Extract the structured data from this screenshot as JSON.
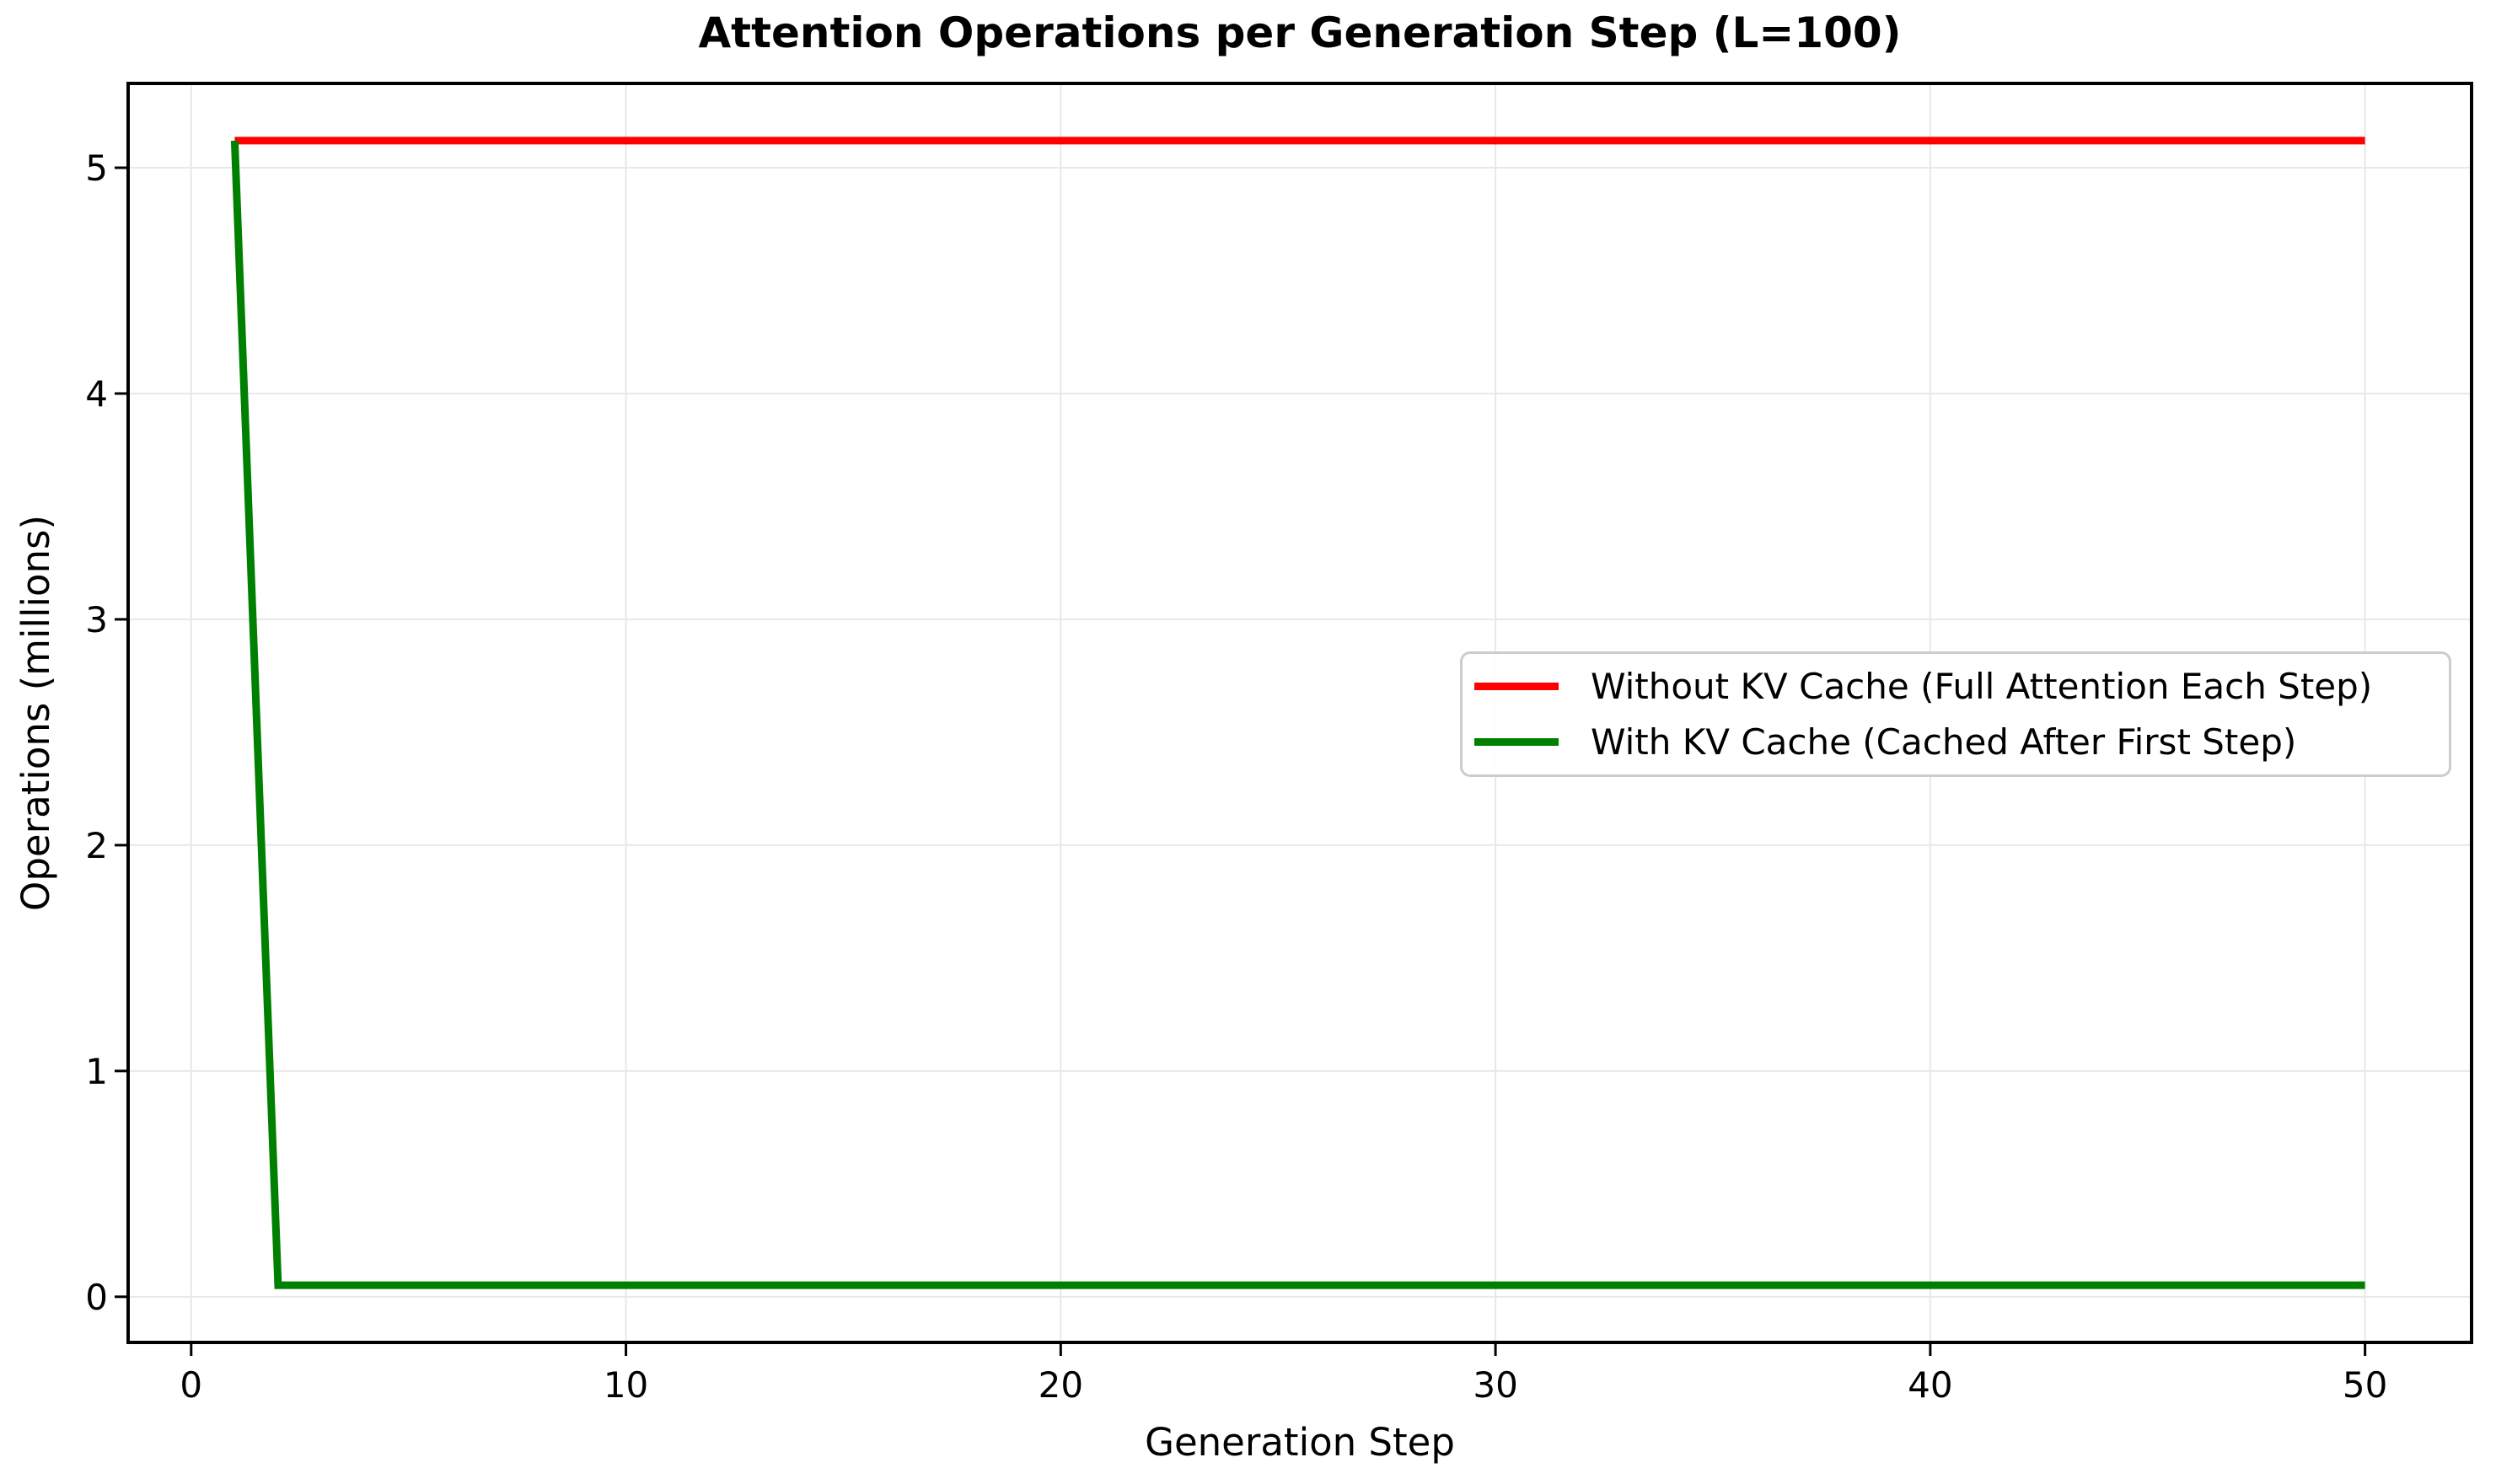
{
  "chart_data": {
    "type": "line",
    "title": "Attention Operations per Generation Step (L=100)",
    "xlabel": "Generation Step",
    "ylabel": "Operations (millions)",
    "xlim": [
      -1.45,
      52.45
    ],
    "ylim": [
      -0.2022,
      5.3734
    ],
    "xticks": [
      0,
      10,
      20,
      30,
      40,
      50
    ],
    "yticks": [
      0,
      1,
      2,
      3,
      4,
      5
    ],
    "grid": true,
    "legend_position": "center right",
    "x": [
      1,
      2,
      3,
      4,
      5,
      6,
      7,
      8,
      9,
      10,
      11,
      12,
      13,
      14,
      15,
      16,
      17,
      18,
      19,
      20,
      21,
      22,
      23,
      24,
      25,
      26,
      27,
      28,
      29,
      30,
      31,
      32,
      33,
      34,
      35,
      36,
      37,
      38,
      39,
      40,
      41,
      42,
      43,
      44,
      45,
      46,
      47,
      48,
      49,
      50
    ],
    "series": [
      {
        "name": "Without KV Cache (Full Attention Each Step)",
        "color": "#ff0000",
        "values": [
          5.12,
          5.12,
          5.12,
          5.12,
          5.12,
          5.12,
          5.12,
          5.12,
          5.12,
          5.12,
          5.12,
          5.12,
          5.12,
          5.12,
          5.12,
          5.12,
          5.12,
          5.12,
          5.12,
          5.12,
          5.12,
          5.12,
          5.12,
          5.12,
          5.12,
          5.12,
          5.12,
          5.12,
          5.12,
          5.12,
          5.12,
          5.12,
          5.12,
          5.12,
          5.12,
          5.12,
          5.12,
          5.12,
          5.12,
          5.12,
          5.12,
          5.12,
          5.12,
          5.12,
          5.12,
          5.12,
          5.12,
          5.12,
          5.12,
          5.12
        ]
      },
      {
        "name": "With KV Cache (Cached After First Step)",
        "color": "#008000",
        "values": [
          5.12,
          0.0512,
          0.0512,
          0.0512,
          0.0512,
          0.0512,
          0.0512,
          0.0512,
          0.0512,
          0.0512,
          0.0512,
          0.0512,
          0.0512,
          0.0512,
          0.0512,
          0.0512,
          0.0512,
          0.0512,
          0.0512,
          0.0512,
          0.0512,
          0.0512,
          0.0512,
          0.0512,
          0.0512,
          0.0512,
          0.0512,
          0.0512,
          0.0512,
          0.0512,
          0.0512,
          0.0512,
          0.0512,
          0.0512,
          0.0512,
          0.0512,
          0.0512,
          0.0512,
          0.0512,
          0.0512,
          0.0512,
          0.0512,
          0.0512,
          0.0512,
          0.0512,
          0.0512,
          0.0512,
          0.0512,
          0.0512,
          0.0512
        ]
      }
    ],
    "colors": {
      "grid": "#e8e8e8",
      "spine": "#000000",
      "tick": "#000000",
      "legend_border": "#cccccc",
      "background": "#ffffff"
    }
  }
}
